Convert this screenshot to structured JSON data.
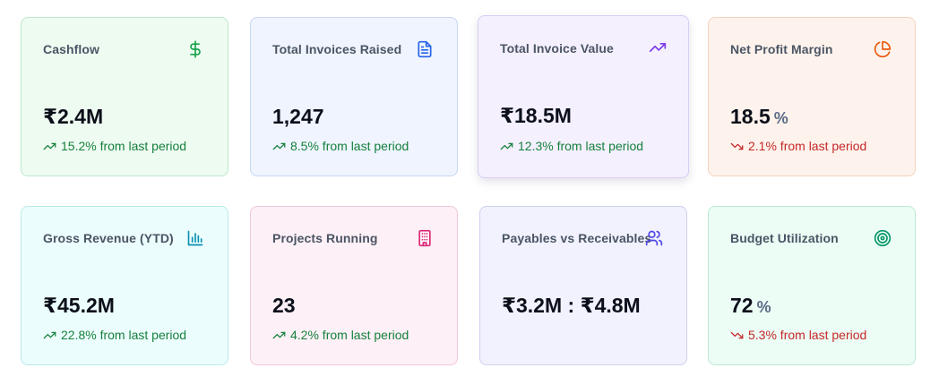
{
  "cards": [
    {
      "title": "Cashflow",
      "value": "₹2.4M",
      "unit": "",
      "change": "15.2% from last period",
      "trend": "up",
      "icon": "dollar-icon",
      "icon_color": "#16a34a"
    },
    {
      "title": "Total Invoices Raised",
      "value": "1,247",
      "unit": "",
      "change": "8.5% from last period",
      "trend": "up",
      "icon": "document-icon",
      "icon_color": "#2563eb"
    },
    {
      "title": "Total Invoice Value",
      "value": "₹18.5M",
      "unit": "",
      "change": "12.3% from last period",
      "trend": "up",
      "icon": "trending-up-icon",
      "icon_color": "#7c3aed"
    },
    {
      "title": "Net Profit Margin",
      "value": "18.5",
      "unit": "%",
      "change": "2.1% from last period",
      "trend": "down",
      "icon": "pie-chart-icon",
      "icon_color": "#ea580c"
    },
    {
      "title": "Gross Revenue (YTD)",
      "value": "₹45.2M",
      "unit": "",
      "change": "22.8% from last period",
      "trend": "up",
      "icon": "bar-chart-icon",
      "icon_color": "#0891b2"
    },
    {
      "title": "Projects Running",
      "value": "23",
      "unit": "",
      "change": "4.2% from last period",
      "trend": "up",
      "icon": "building-icon",
      "icon_color": "#db2777"
    },
    {
      "title": "Payables vs Receivables",
      "value": "₹3.2M : ₹4.8M",
      "unit": "",
      "change": "",
      "trend": "",
      "icon": "users-icon",
      "icon_color": "#4f46e5"
    },
    {
      "title": "Budget Utilization",
      "value": "72",
      "unit": "%",
      "change": "5.3% from last period",
      "trend": "down",
      "icon": "target-icon",
      "icon_color": "#059669"
    }
  ],
  "colors": {
    "up": "#15803d",
    "down": "#c62828"
  }
}
